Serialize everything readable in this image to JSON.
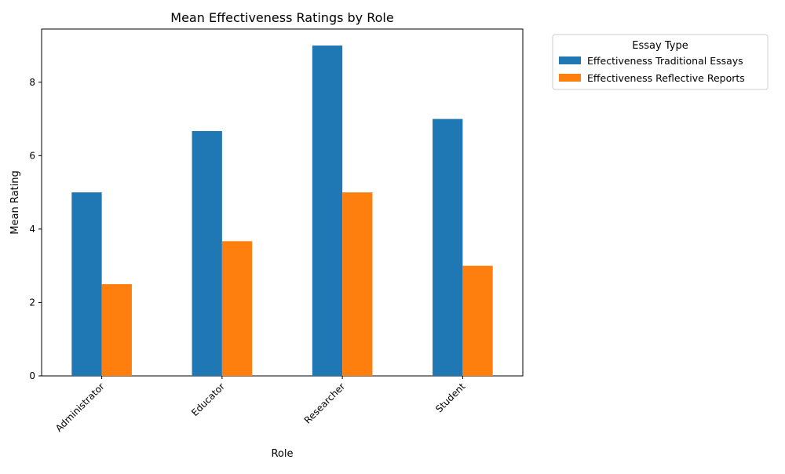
{
  "chart_data": {
    "type": "bar",
    "title": "Mean Effectiveness Ratings by Role",
    "xlabel": "Role",
    "ylabel": "Mean Rating",
    "categories": [
      "Administrator",
      "Educator",
      "Researcher",
      "Student"
    ],
    "series": [
      {
        "name": "Effectiveness Traditional Essays",
        "color": "#1f77b4",
        "values": [
          5.0,
          6.67,
          9.0,
          7.0
        ]
      },
      {
        "name": "Effectiveness Reflective Reports",
        "color": "#ff7f0e",
        "values": [
          2.5,
          3.67,
          5.0,
          3.0
        ]
      }
    ],
    "ylim": [
      0,
      9.45
    ],
    "yticks": [
      "0",
      "2",
      "4",
      "6",
      "8"
    ],
    "grid": false,
    "legend": {
      "title": "Essay Type",
      "placement": "outside-top-right"
    }
  }
}
